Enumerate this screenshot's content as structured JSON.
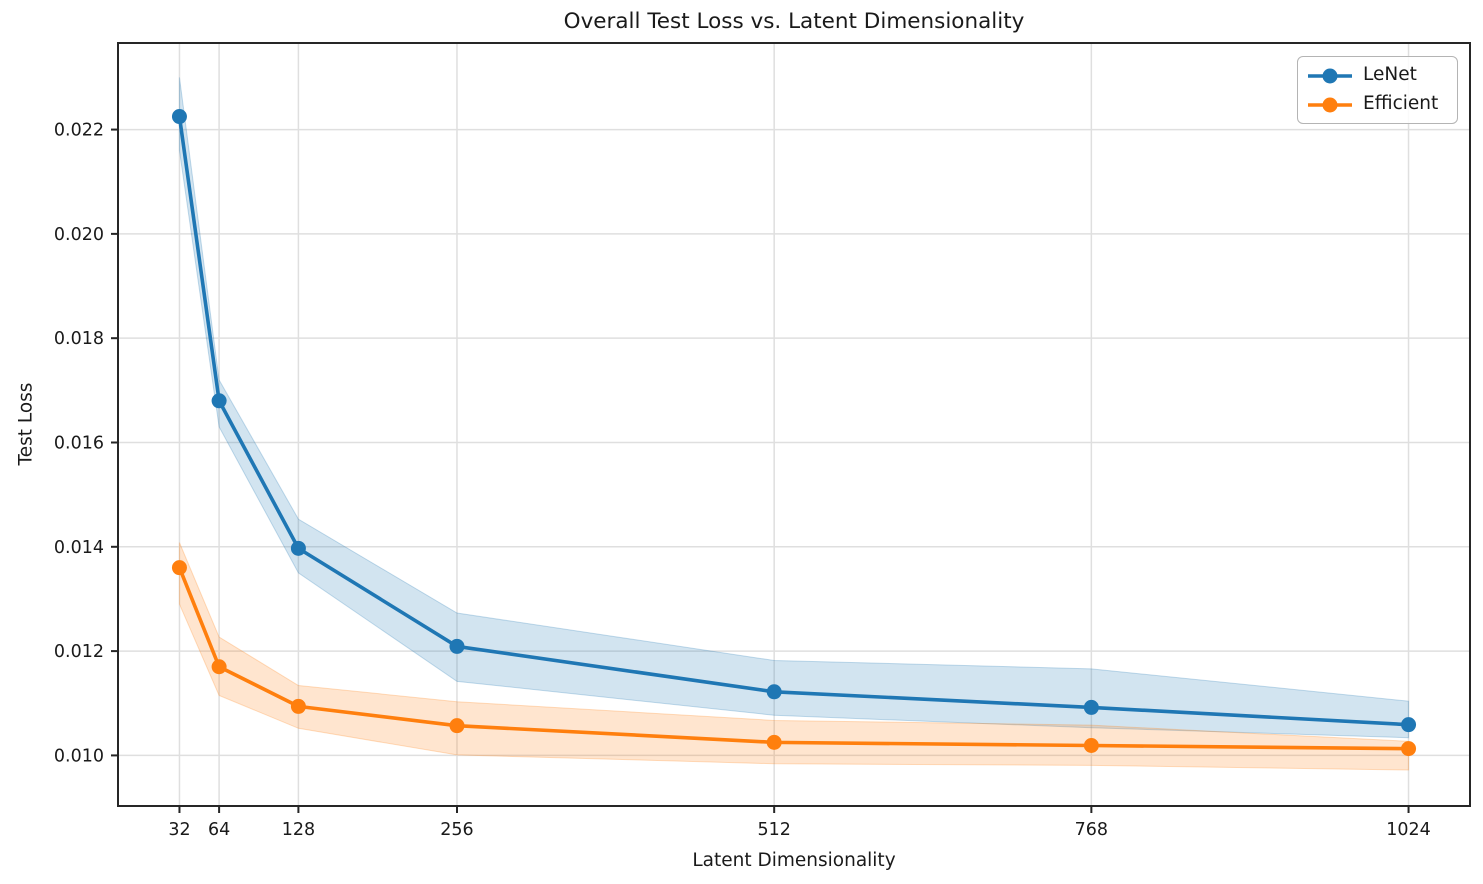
{
  "chart_data": {
    "type": "line",
    "title": "Overall Test Loss vs. Latent Dimensionality",
    "xlabel": "Latent Dimensionality",
    "ylabel": "Test Loss",
    "grid": true,
    "legend_position": "upper right",
    "x": [
      32,
      64,
      128,
      256,
      512,
      768,
      1024
    ],
    "xtick_labels": [
      "32",
      "64",
      "128",
      "256",
      "512",
      "768",
      "1024"
    ],
    "ytick_values": [
      0.01,
      0.012,
      0.014,
      0.016,
      0.018,
      0.02,
      0.022
    ],
    "ytick_labels": [
      "0.010",
      "0.012",
      "0.014",
      "0.016",
      "0.018",
      "0.020",
      "0.022"
    ],
    "xlim": [
      -17.6,
      1073.6
    ],
    "ylim": [
      0.00903,
      0.02366
    ],
    "series": [
      {
        "name": "LeNet",
        "color": "#1f77b4",
        "values": [
          0.02225,
          0.0168,
          0.01397,
          0.01209,
          0.01122,
          0.01092,
          0.01059
        ],
        "band_lo": [
          0.0216,
          0.0163,
          0.0135,
          0.01142,
          0.01077,
          0.01053,
          0.01034
        ],
        "band_hi": [
          0.023,
          0.0172,
          0.01453,
          0.01273,
          0.01182,
          0.01166,
          0.01104
        ]
      },
      {
        "name": "Efficient",
        "color": "#ff7f0e",
        "values": [
          0.0136,
          0.0117,
          0.01094,
          0.01057,
          0.01025,
          0.01019,
          0.01013
        ],
        "band_lo": [
          0.0129,
          0.01115,
          0.01052,
          0.01001,
          0.00984,
          0.00981,
          0.00972
        ],
        "band_hi": [
          0.01408,
          0.01227,
          0.01134,
          0.01103,
          0.01067,
          0.01058,
          0.01027
        ]
      }
    ]
  }
}
